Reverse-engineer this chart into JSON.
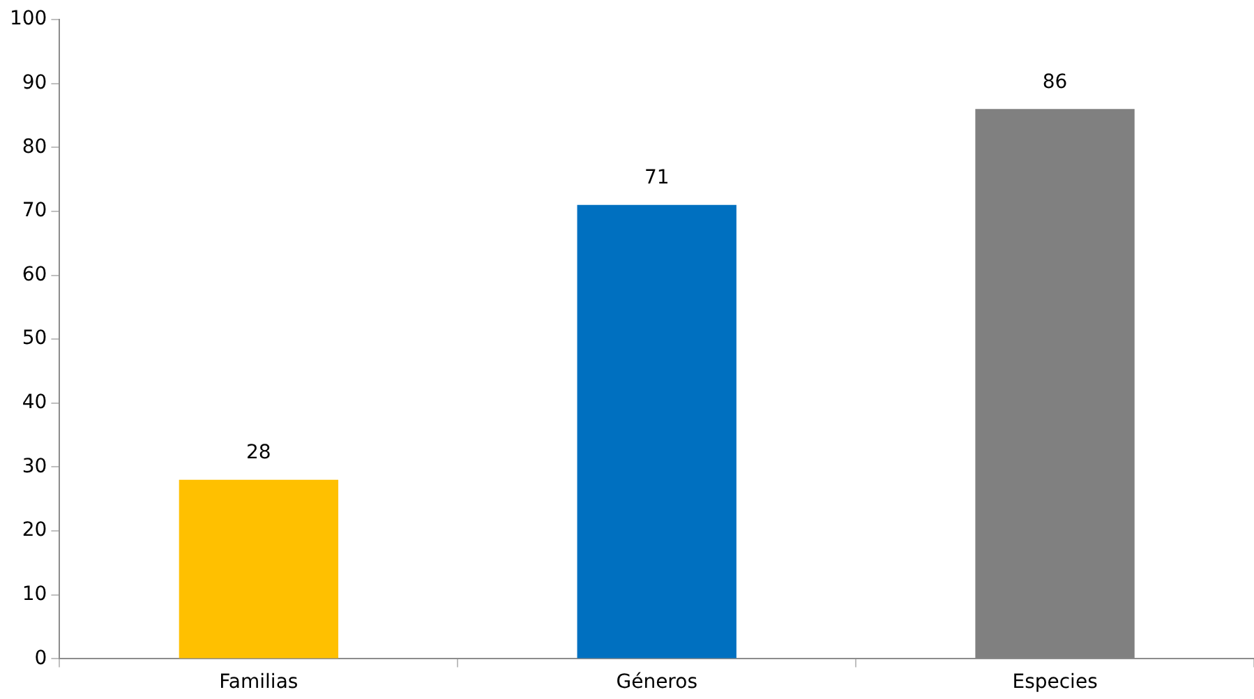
{
  "chart_data": {
    "type": "bar",
    "categories": [
      "Familias",
      "Géneros",
      "Especies"
    ],
    "values": [
      28,
      71,
      86
    ],
    "colors": [
      "#ffc000",
      "#0070c0",
      "#808080"
    ],
    "ylim": [
      0,
      100
    ],
    "yticks": [
      0,
      10,
      20,
      30,
      40,
      50,
      60,
      70,
      80,
      90,
      100
    ],
    "grid": false,
    "legend": false,
    "data_labels": true
  }
}
